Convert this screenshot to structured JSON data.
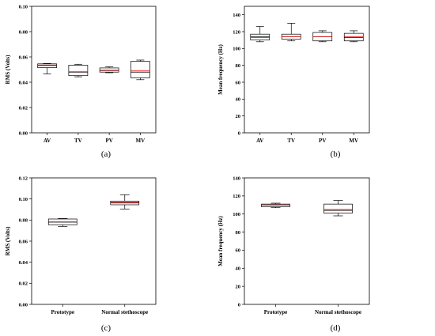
{
  "chart_data": [
    {
      "type": "box",
      "panel_label": "(a)",
      "ylabel": "RMS (Volts)",
      "xlabel": "",
      "ylim": [
        0.0,
        0.1
      ],
      "yticks": [
        "0.00",
        "0.02",
        "0.04",
        "0.06",
        "0.08",
        "0.10"
      ],
      "categories": [
        "AV",
        "TV",
        "PV",
        "MV"
      ],
      "boxes": [
        {
          "min": 0.0465,
          "q1": 0.0515,
          "median": 0.0533,
          "mean": 0.0536,
          "q3": 0.0545,
          "max": 0.0548
        },
        {
          "min": 0.0443,
          "q1": 0.0452,
          "median": 0.048,
          "mean": 0.0483,
          "q3": 0.0535,
          "max": 0.0542
        },
        {
          "min": 0.0475,
          "q1": 0.048,
          "median": 0.0492,
          "mean": 0.0495,
          "q3": 0.0513,
          "max": 0.0522
        },
        {
          "min": 0.042,
          "q1": 0.0435,
          "median": 0.048,
          "mean": 0.0492,
          "q3": 0.0565,
          "max": 0.0575
        }
      ]
    },
    {
      "type": "box",
      "panel_label": "(b)",
      "ylabel": "Mean frequency (Hz)",
      "xlabel": "",
      "ylim": [
        0,
        150
      ],
      "yticks": [
        "0",
        "20",
        "40",
        "60",
        "80",
        "100",
        "120",
        "140"
      ],
      "categories": [
        "AV",
        "TV",
        "PV",
        "MV"
      ],
      "boxes": [
        {
          "min": 108,
          "q1": 110,
          "median": 114,
          "mean": 113,
          "q3": 117,
          "max": 126
        },
        {
          "min": 109,
          "q1": 111,
          "median": 114,
          "mean": 114,
          "q3": 117,
          "max": 130
        },
        {
          "min": 108,
          "q1": 109,
          "median": 114,
          "mean": 114,
          "q3": 119,
          "max": 121
        },
        {
          "min": 108,
          "q1": 109,
          "median": 113,
          "mean": 114,
          "q3": 118,
          "max": 121
        }
      ]
    },
    {
      "type": "box",
      "panel_label": "(c)",
      "ylabel": "RMS (Volts)",
      "xlabel": "",
      "ylim": [
        0.0,
        0.12
      ],
      "yticks": [
        "0.00",
        "0.02",
        "0.04",
        "0.06",
        "0.08",
        "0.10",
        "0.12"
      ],
      "categories": [
        "Prototype",
        "Normal stethoscope"
      ],
      "boxes": [
        {
          "min": 0.074,
          "q1": 0.0755,
          "median": 0.078,
          "mean": 0.0783,
          "q3": 0.081,
          "max": 0.0815
        },
        {
          "min": 0.0905,
          "q1": 0.0945,
          "median": 0.0962,
          "mean": 0.0967,
          "q3": 0.098,
          "max": 0.104
        }
      ]
    },
    {
      "type": "box",
      "panel_label": "(d)",
      "ylabel": "Mean frequency (Hz)",
      "xlabel": "",
      "ylim": [
        0,
        140
      ],
      "yticks": [
        "0",
        "20",
        "40",
        "60",
        "80",
        "100",
        "120",
        "140"
      ],
      "categories": [
        "Prototype",
        "Normal stethoscope"
      ],
      "boxes": [
        {
          "min": 107,
          "q1": 108,
          "median": 110,
          "mean": 110,
          "q3": 111,
          "max": 112
        },
        {
          "min": 98,
          "q1": 101,
          "median": 104,
          "mean": 105,
          "q3": 111,
          "max": 115
        }
      ]
    }
  ],
  "colors": {
    "box_stroke": "#000000",
    "median": "#000000",
    "mean": "#e00000"
  }
}
